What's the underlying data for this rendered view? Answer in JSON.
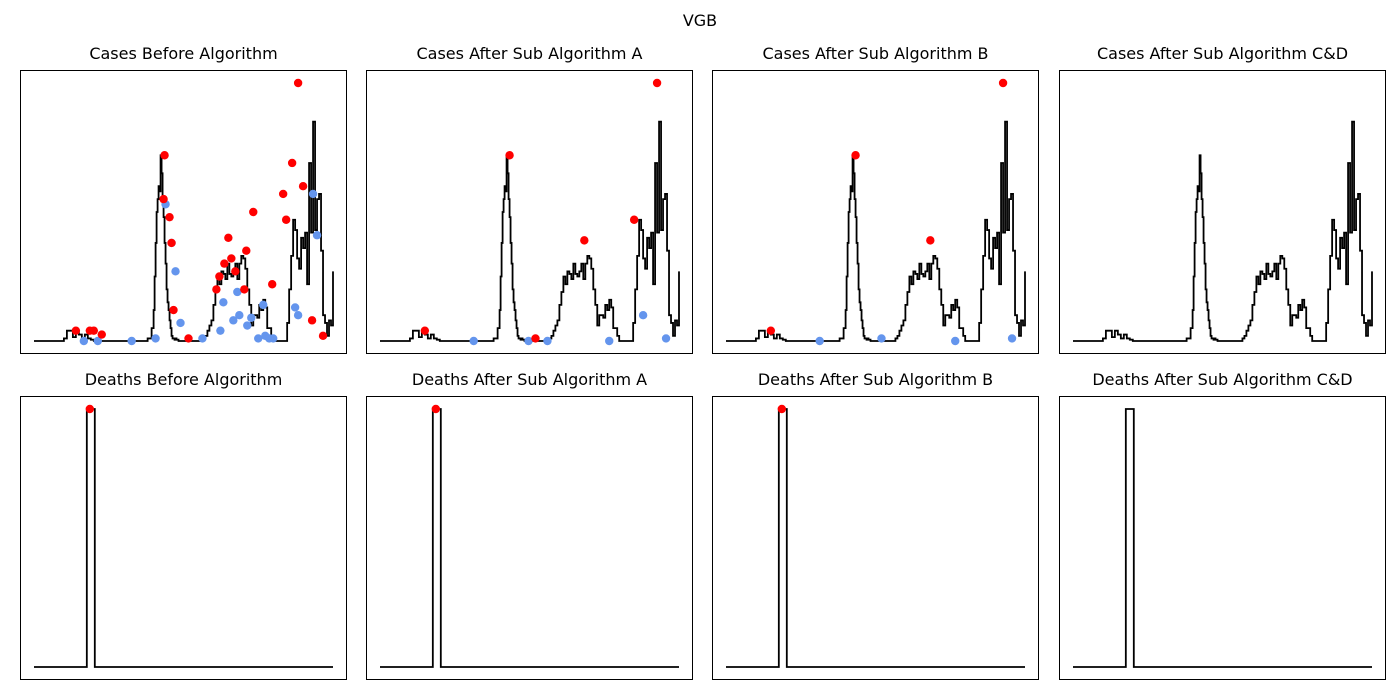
{
  "figure": {
    "suptitle": "VGB"
  },
  "colors": {
    "line": "#000000",
    "peak": "#ff0000",
    "trough": "#6495ed"
  },
  "chart_data": [
    {
      "type": "line",
      "title": "Cases Before Algorithm",
      "x": [
        0,
        10,
        20,
        28,
        30,
        33,
        36,
        39,
        42,
        45,
        48,
        51,
        54,
        57,
        60,
        64,
        70,
        80,
        90,
        100,
        108,
        114,
        118,
        120,
        121,
        122,
        123,
        124,
        125,
        126,
        127,
        128,
        129,
        130,
        131,
        132,
        133,
        134,
        135,
        136,
        137,
        138,
        139,
        140,
        141,
        142,
        143,
        144,
        145,
        150,
        155,
        160,
        165,
        170,
        172,
        174,
        176,
        178,
        180,
        182,
        184,
        186,
        188,
        190,
        192,
        194,
        196,
        198,
        200,
        202,
        204,
        206,
        208,
        210,
        212,
        214,
        216,
        218,
        220,
        222,
        224,
        226,
        228,
        230,
        232,
        234,
        236,
        238,
        240,
        245,
        248,
        250,
        252,
        254,
        256,
        258,
        260,
        262,
        264,
        266,
        268,
        270,
        272,
        274,
        276,
        278,
        280,
        282,
        284,
        286,
        288,
        290,
        292,
        294,
        296,
        298,
        300
      ],
      "y": [
        0,
        0,
        0,
        0,
        0.01,
        0.04,
        0.04,
        0.015,
        0.04,
        0.025,
        0.01,
        0.025,
        0.01,
        0.005,
        0,
        0,
        0,
        0,
        0,
        0,
        0,
        0.01,
        0.05,
        0.12,
        0.25,
        0.38,
        0.5,
        0.55,
        0.6,
        0.58,
        0.72,
        0.65,
        0.55,
        0.48,
        0.38,
        0.3,
        0.2,
        0.15,
        0.12,
        0.08,
        0.05,
        0.02,
        0.01,
        0.01,
        0.005,
        0.01,
        0.005,
        0.005,
        0,
        0,
        0,
        0,
        0,
        0.01,
        0.02,
        0.04,
        0.06,
        0.08,
        0.14,
        0.19,
        0.25,
        0.22,
        0.27,
        0.26,
        0.24,
        0.3,
        0.26,
        0.25,
        0.27,
        0.3,
        0.24,
        0.3,
        0.33,
        0.32,
        0.28,
        0.2,
        0.14,
        0.06,
        0.1,
        0.1,
        0.09,
        0.14,
        0.12,
        0.16,
        0.13,
        0.05,
        0.05,
        0.02,
        0,
        0,
        0,
        0,
        0,
        0.07,
        0.2,
        0.33,
        0.47,
        0.43,
        0.32,
        0.28,
        0.4,
        0.36,
        0.42,
        0.22,
        0.69,
        0.42,
        0.85,
        0.43,
        0.55,
        0.57,
        0.35,
        0.1,
        0.07,
        0.02,
        0.08,
        0.06,
        0.27
      ],
      "peaks_x": [
        42,
        56,
        60,
        68,
        130,
        131,
        136,
        138,
        140,
        155,
        183,
        186,
        191,
        195,
        198,
        202,
        211,
        213,
        220,
        239,
        250,
        253,
        259,
        265,
        270,
        279,
        290
      ],
      "peaks_y": [
        0.04,
        0.04,
        0.04,
        0.025,
        0.55,
        0.72,
        0.48,
        0.38,
        0.12,
        0.01,
        0.2,
        0.25,
        0.3,
        0.4,
        0.32,
        0.27,
        0.2,
        0.35,
        0.5,
        0.22,
        0.57,
        0.47,
        0.69,
        1.0,
        0.6,
        0.08,
        0.02
      ],
      "troughs_x": [
        50,
        64,
        98,
        122,
        132,
        138,
        142,
        147,
        169,
        187,
        190,
        200,
        204,
        206,
        214,
        218,
        225,
        230,
        232,
        236,
        240,
        262,
        265,
        280,
        284
      ],
      "troughs_y": [
        0,
        0,
        0,
        0.01,
        0.53,
        0.38,
        0.27,
        0.07,
        0.01,
        0.04,
        0.15,
        0.08,
        0.19,
        0.1,
        0.06,
        0.09,
        0.01,
        0.14,
        0.02,
        0.01,
        0.01,
        0.13,
        0.1,
        0.57,
        0.41
      ]
    },
    {
      "type": "line",
      "title": "Cases After Sub Algorithm A",
      "x": [
        0,
        10,
        20,
        28,
        30,
        33,
        36,
        39,
        42,
        45,
        48,
        51,
        54,
        57,
        60,
        64,
        70,
        80,
        90,
        100,
        108,
        114,
        118,
        120,
        121,
        122,
        123,
        124,
        125,
        126,
        127,
        128,
        129,
        130,
        131,
        132,
        133,
        134,
        135,
        136,
        137,
        138,
        139,
        140,
        141,
        142,
        143,
        144,
        145,
        150,
        155,
        160,
        165,
        170,
        172,
        174,
        176,
        178,
        180,
        182,
        184,
        186,
        188,
        190,
        192,
        194,
        196,
        198,
        200,
        202,
        204,
        206,
        208,
        210,
        212,
        214,
        216,
        218,
        220,
        222,
        224,
        226,
        228,
        230,
        232,
        234,
        236,
        238,
        240,
        245,
        248,
        250,
        252,
        254,
        256,
        258,
        260,
        262,
        264,
        266,
        268,
        270,
        272,
        274,
        276,
        278,
        280,
        282,
        284,
        286,
        288,
        290,
        292,
        294,
        296,
        298,
        300
      ],
      "y": [
        0,
        0,
        0,
        0,
        0.01,
        0.04,
        0.04,
        0.015,
        0.04,
        0.025,
        0.01,
        0.025,
        0.01,
        0.005,
        0,
        0,
        0,
        0,
        0,
        0,
        0,
        0.01,
        0.05,
        0.12,
        0.25,
        0.38,
        0.5,
        0.55,
        0.6,
        0.58,
        0.72,
        0.65,
        0.55,
        0.48,
        0.38,
        0.3,
        0.2,
        0.15,
        0.12,
        0.08,
        0.05,
        0.02,
        0.01,
        0.01,
        0.005,
        0.01,
        0.005,
        0.005,
        0,
        0,
        0,
        0,
        0,
        0.01,
        0.02,
        0.04,
        0.06,
        0.08,
        0.14,
        0.19,
        0.25,
        0.22,
        0.27,
        0.26,
        0.24,
        0.3,
        0.26,
        0.25,
        0.27,
        0.3,
        0.24,
        0.3,
        0.33,
        0.32,
        0.28,
        0.2,
        0.14,
        0.06,
        0.1,
        0.1,
        0.09,
        0.14,
        0.12,
        0.16,
        0.13,
        0.05,
        0.05,
        0.02,
        0,
        0,
        0,
        0,
        0,
        0.07,
        0.2,
        0.33,
        0.47,
        0.43,
        0.32,
        0.28,
        0.4,
        0.36,
        0.42,
        0.22,
        0.69,
        0.42,
        0.85,
        0.43,
        0.55,
        0.57,
        0.35,
        0.1,
        0.07,
        0.02,
        0.08,
        0.06,
        0.27
      ],
      "peaks_x": [
        45,
        130,
        156,
        205,
        255,
        278
      ],
      "peaks_y": [
        0.04,
        0.72,
        0.01,
        0.39,
        0.47,
        1.0
      ],
      "troughs_x": [
        94,
        149,
        168,
        230,
        264,
        287
      ],
      "troughs_y": [
        0,
        0,
        0,
        0,
        0.1,
        0.01
      ]
    },
    {
      "type": "line",
      "title": "Cases After Sub Algorithm B",
      "x": [
        0,
        10,
        20,
        28,
        30,
        33,
        36,
        39,
        42,
        45,
        48,
        51,
        54,
        57,
        60,
        64,
        70,
        80,
        90,
        100,
        108,
        114,
        118,
        120,
        121,
        122,
        123,
        124,
        125,
        126,
        127,
        128,
        129,
        130,
        131,
        132,
        133,
        134,
        135,
        136,
        137,
        138,
        139,
        140,
        141,
        142,
        143,
        144,
        145,
        150,
        155,
        160,
        165,
        170,
        172,
        174,
        176,
        178,
        180,
        182,
        184,
        186,
        188,
        190,
        192,
        194,
        196,
        198,
        200,
        202,
        204,
        206,
        208,
        210,
        212,
        214,
        216,
        218,
        220,
        222,
        224,
        226,
        228,
        230,
        232,
        234,
        236,
        238,
        240,
        245,
        248,
        250,
        252,
        254,
        256,
        258,
        260,
        262,
        264,
        266,
        268,
        270,
        272,
        274,
        276,
        278,
        280,
        282,
        284,
        286,
        288,
        290,
        292,
        294,
        296,
        298,
        300
      ],
      "y": [
        0,
        0,
        0,
        0,
        0.01,
        0.04,
        0.04,
        0.015,
        0.04,
        0.025,
        0.01,
        0.025,
        0.01,
        0.005,
        0,
        0,
        0,
        0,
        0,
        0,
        0,
        0.01,
        0.05,
        0.12,
        0.25,
        0.38,
        0.5,
        0.55,
        0.6,
        0.58,
        0.72,
        0.65,
        0.55,
        0.48,
        0.38,
        0.3,
        0.2,
        0.15,
        0.12,
        0.08,
        0.05,
        0.02,
        0.01,
        0.01,
        0.005,
        0.01,
        0.005,
        0.005,
        0,
        0,
        0,
        0,
        0,
        0.01,
        0.02,
        0.04,
        0.06,
        0.08,
        0.14,
        0.19,
        0.25,
        0.22,
        0.27,
        0.26,
        0.24,
        0.3,
        0.26,
        0.25,
        0.27,
        0.3,
        0.24,
        0.3,
        0.33,
        0.32,
        0.28,
        0.2,
        0.14,
        0.06,
        0.1,
        0.1,
        0.09,
        0.14,
        0.12,
        0.16,
        0.13,
        0.05,
        0.05,
        0.02,
        0,
        0,
        0,
        0,
        0,
        0.07,
        0.2,
        0.33,
        0.47,
        0.43,
        0.32,
        0.28,
        0.4,
        0.36,
        0.42,
        0.22,
        0.69,
        0.42,
        0.85,
        0.43,
        0.55,
        0.57,
        0.35,
        0.1,
        0.07,
        0.02,
        0.08,
        0.06,
        0.27
      ],
      "peaks_x": [
        45,
        130,
        205,
        278
      ],
      "peaks_y": [
        0.04,
        0.72,
        0.39,
        1.0
      ],
      "troughs_x": [
        94,
        156,
        230,
        287
      ],
      "troughs_y": [
        0,
        0.01,
        0,
        0.01
      ]
    },
    {
      "type": "line",
      "title": "Cases After Sub Algorithm C&D",
      "x": [
        0,
        10,
        20,
        28,
        30,
        33,
        36,
        39,
        42,
        45,
        48,
        51,
        54,
        57,
        60,
        64,
        70,
        80,
        90,
        100,
        108,
        114,
        118,
        120,
        121,
        122,
        123,
        124,
        125,
        126,
        127,
        128,
        129,
        130,
        131,
        132,
        133,
        134,
        135,
        136,
        137,
        138,
        139,
        140,
        141,
        142,
        143,
        144,
        145,
        150,
        155,
        160,
        165,
        170,
        172,
        174,
        176,
        178,
        180,
        182,
        184,
        186,
        188,
        190,
        192,
        194,
        196,
        198,
        200,
        202,
        204,
        206,
        208,
        210,
        212,
        214,
        216,
        218,
        220,
        222,
        224,
        226,
        228,
        230,
        232,
        234,
        236,
        238,
        240,
        245,
        248,
        250,
        252,
        254,
        256,
        258,
        260,
        262,
        264,
        266,
        268,
        270,
        272,
        274,
        276,
        278,
        280,
        282,
        284,
        286,
        288,
        290,
        292,
        294,
        296,
        298,
        300
      ],
      "y": [
        0,
        0,
        0,
        0,
        0.01,
        0.04,
        0.04,
        0.015,
        0.04,
        0.025,
        0.01,
        0.025,
        0.01,
        0.005,
        0,
        0,
        0,
        0,
        0,
        0,
        0,
        0.01,
        0.05,
        0.12,
        0.25,
        0.38,
        0.5,
        0.55,
        0.6,
        0.58,
        0.72,
        0.65,
        0.55,
        0.48,
        0.38,
        0.3,
        0.2,
        0.15,
        0.12,
        0.08,
        0.05,
        0.02,
        0.01,
        0.01,
        0.005,
        0.01,
        0.005,
        0.005,
        0,
        0,
        0,
        0,
        0,
        0.01,
        0.02,
        0.04,
        0.06,
        0.08,
        0.14,
        0.19,
        0.25,
        0.22,
        0.27,
        0.26,
        0.24,
        0.3,
        0.26,
        0.25,
        0.27,
        0.3,
        0.24,
        0.3,
        0.33,
        0.32,
        0.28,
        0.2,
        0.14,
        0.06,
        0.1,
        0.1,
        0.09,
        0.14,
        0.12,
        0.16,
        0.13,
        0.05,
        0.05,
        0.02,
        0,
        0,
        0,
        0,
        0,
        0.07,
        0.2,
        0.33,
        0.47,
        0.43,
        0.32,
        0.28,
        0.4,
        0.36,
        0.42,
        0.22,
        0.69,
        0.42,
        0.85,
        0.43,
        0.55,
        0.57,
        0.35,
        0.1,
        0.07,
        0.02,
        0.08,
        0.06,
        0.27
      ],
      "peaks_x": [],
      "peaks_y": [],
      "troughs_x": [],
      "troughs_y": []
    },
    {
      "type": "line",
      "title": "Deaths Before Algorithm",
      "x": [
        0,
        52,
        53,
        60,
        61,
        300
      ],
      "y": [
        0,
        0,
        1,
        1,
        0,
        0
      ],
      "peaks_x": [
        56
      ],
      "peaks_y": [
        1
      ],
      "troughs_x": [],
      "troughs_y": []
    },
    {
      "type": "line",
      "title": "Deaths After Sub Algorithm A",
      "x": [
        0,
        52,
        53,
        60,
        61,
        300
      ],
      "y": [
        0,
        0,
        1,
        1,
        0,
        0
      ],
      "peaks_x": [
        56
      ],
      "peaks_y": [
        1
      ],
      "troughs_x": [],
      "troughs_y": []
    },
    {
      "type": "line",
      "title": "Deaths After Sub Algorithm B",
      "x": [
        0,
        52,
        53,
        60,
        61,
        300
      ],
      "y": [
        0,
        0,
        1,
        1,
        0,
        0
      ],
      "peaks_x": [
        56
      ],
      "peaks_y": [
        1
      ],
      "troughs_x": [],
      "troughs_y": []
    },
    {
      "type": "line",
      "title": "Deaths After Sub Algorithm C&D",
      "x": [
        0,
        52,
        53,
        60,
        61,
        300
      ],
      "y": [
        0,
        0,
        1,
        1,
        0,
        0
      ],
      "peaks_x": [],
      "peaks_y": [],
      "troughs_x": [],
      "troughs_y": []
    }
  ]
}
